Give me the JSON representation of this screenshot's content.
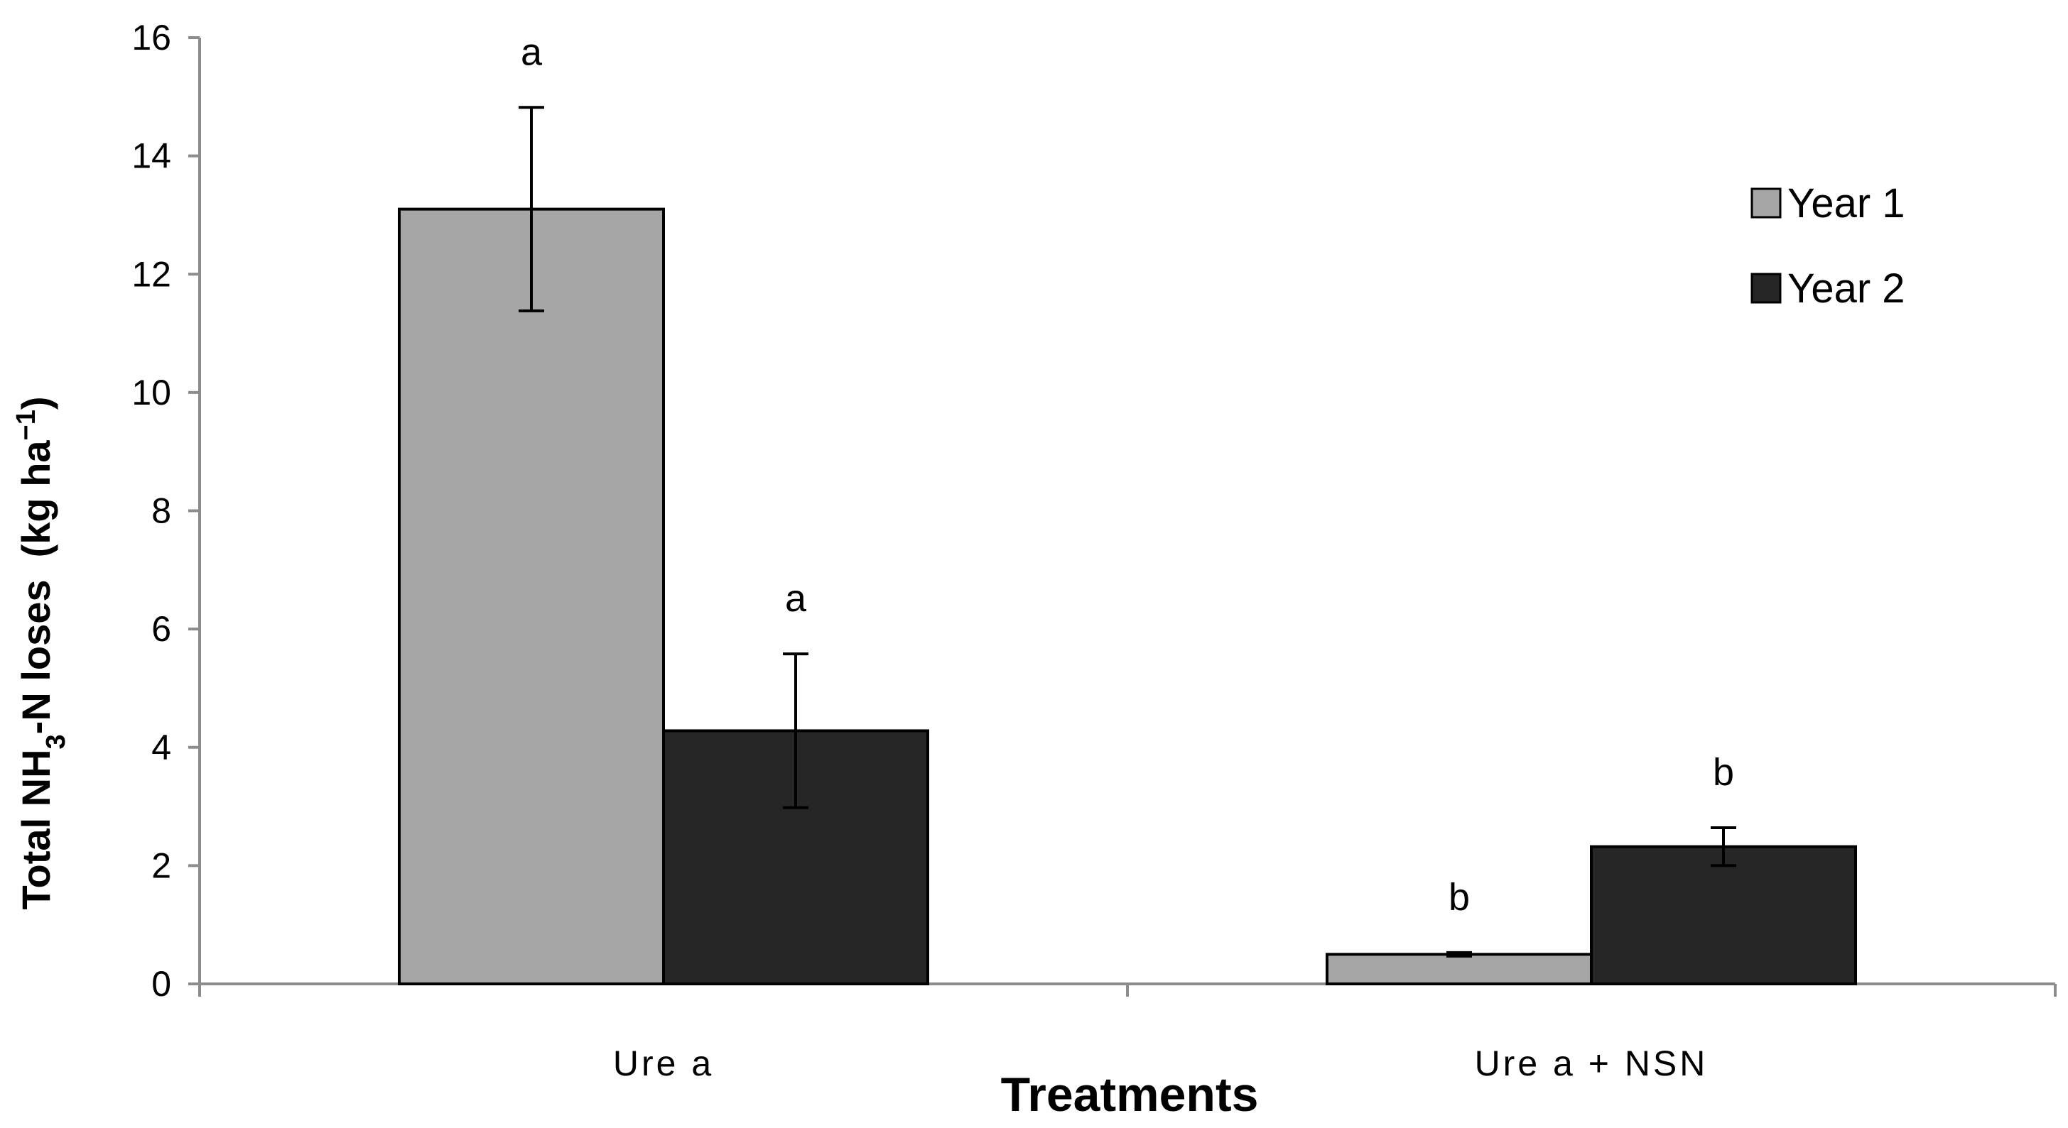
{
  "chart_data": {
    "type": "bar",
    "categories": [
      "Urea",
      "Urea + NSN"
    ],
    "category_labels": [
      "Ure a",
      "Ure a + NSN"
    ],
    "series": [
      {
        "name": "Year 1",
        "color": "#a6a6a6",
        "values": [
          13.1,
          0.5
        ],
        "errors": [
          1.72,
          0.03
        ],
        "significance": [
          "a",
          "b"
        ]
      },
      {
        "name": "Year 2",
        "color": "#262626",
        "values": [
          4.28,
          2.32
        ],
        "errors": [
          1.3,
          0.32
        ],
        "significance": [
          "a",
          "b"
        ]
      }
    ],
    "xlabel": "Treatments",
    "ylabel": {
      "main": "Total NH",
      "sub": "3",
      "rest": "-N loses  (kg ha",
      "sup": "−1",
      "end": ")"
    },
    "ylim": [
      0,
      16
    ],
    "yticks": [
      0,
      2,
      4,
      6,
      8,
      10,
      12,
      14,
      16
    ],
    "grid": false,
    "legend_position": "top-right"
  }
}
